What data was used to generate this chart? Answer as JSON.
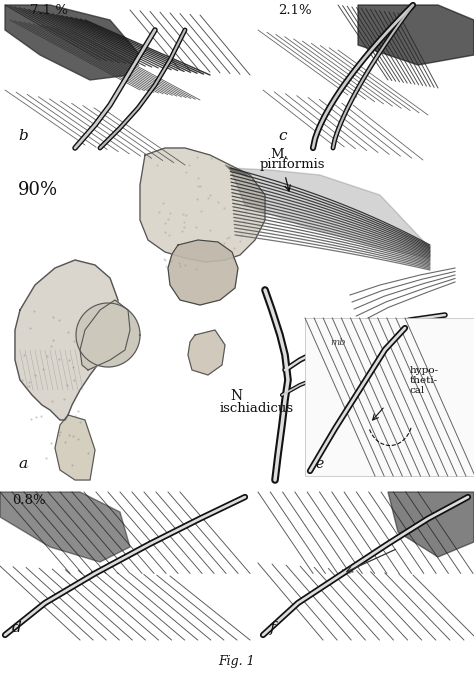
{
  "background_color": "#ffffff",
  "panel_color": "#ffffff",
  "text_color": "#111111",
  "labels": {
    "b_pct": "7.1 %",
    "c_pct": "2.1%",
    "a_pct": "90%",
    "d_pct": "0.8%",
    "m_piriformis_1": "M.",
    "m_piriformis_2": "piriformis",
    "n_label": "N",
    "ischiadicus": "ischiadicus",
    "hypothetical_1": "hypo-",
    "hypothetical_2": "theti-",
    "hypothetical_3": "cal",
    "label_a": "a",
    "label_b": "b",
    "label_c": "c",
    "label_d": "d",
    "label_e": "e",
    "label_f": "f",
    "fig_label": "Fig. 1",
    "mb_label": "mb"
  },
  "fig_width": 4.74,
  "fig_height": 6.79,
  "dpi": 100
}
